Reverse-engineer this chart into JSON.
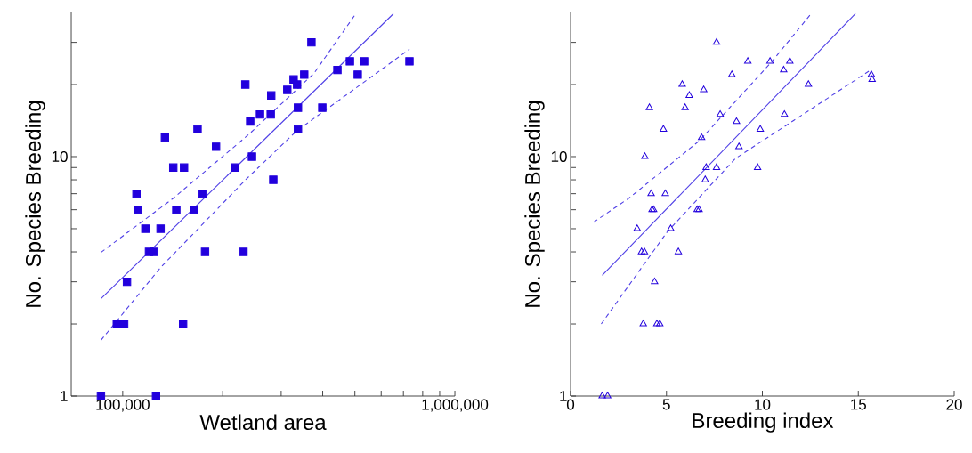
{
  "chart_data": [
    {
      "type": "scatter",
      "xlabel": "Wetland area",
      "ylabel": "No. Species Breeding",
      "log": "xy",
      "xlim": [
        70000,
        1000000
      ],
      "ylim": [
        1,
        40
      ],
      "xticks": [
        {
          "value": 100000,
          "label": "100,000"
        },
        {
          "value": 200000,
          "label": null
        },
        {
          "value": 300000,
          "label": null
        },
        {
          "value": 400000,
          "label": null
        },
        {
          "value": 500000,
          "label": null
        },
        {
          "value": 600000,
          "label": null
        },
        {
          "value": 700000,
          "label": null
        },
        {
          "value": 800000,
          "label": null
        },
        {
          "value": 900000,
          "label": null
        },
        {
          "value": 1000000,
          "label": "1,000,000"
        }
      ],
      "yticks": [
        1,
        {
          "value": 2,
          "label": null
        },
        {
          "value": 3,
          "label": null
        },
        {
          "value": 4,
          "label": null
        },
        {
          "value": 5,
          "label": null
        },
        {
          "value": 6,
          "label": null
        },
        {
          "value": 7,
          "label": null
        },
        {
          "value": 8,
          "label": null
        },
        {
          "value": 9,
          "label": null
        },
        10,
        {
          "value": 20,
          "label": null
        },
        {
          "value": 30,
          "label": null
        }
      ],
      "series": [
        {
          "type": "scatter",
          "marker": "square",
          "color": "#2200dd",
          "x": [
            370000,
            483000,
            533000,
            730000,
            443000,
            510000,
            352000,
            327000,
            335000,
            234000,
            313000,
            280000,
            337000,
            399000,
            259000,
            279000,
            242000,
            337000,
            168000,
            134000,
            191000,
            245000,
            142000,
            153000,
            218000,
            284000,
            110000,
            174000,
            111000,
            145000,
            164000,
            117000,
            130000,
            120000,
            124000,
            177000,
            231000,
            103000,
            96000,
            101000,
            152000,
            86000,
            126000
          ],
          "values": [
            30,
            25,
            25,
            25,
            23,
            22,
            22,
            21,
            20,
            20,
            19,
            18,
            16,
            16,
            15,
            15,
            14,
            13,
            13,
            12,
            11,
            10,
            9,
            9,
            9,
            8,
            7,
            7,
            6,
            6,
            6,
            5,
            5,
            4,
            4,
            4,
            4,
            3,
            2,
            2,
            2,
            1,
            1
          ]
        },
        {
          "type": "line",
          "marker": "none",
          "line_style": "solid",
          "color": "#4f3fe6",
          "x": [
            86000,
            653000
          ],
          "values": [
            2.55,
            39.5
          ]
        },
        {
          "type": "line",
          "marker": "none",
          "line_style": "dashed",
          "color": "#4f3fe6",
          "x": [
            86000,
            142000,
            240000,
            377000,
            503000
          ],
          "values": [
            3.98,
            6.7,
            12.4,
            22.3,
            39.5
          ]
        },
        {
          "type": "line",
          "marker": "none",
          "line_style": "dashed",
          "color": "#4f3fe6",
          "x": [
            86000,
            130000,
            236000,
            334000,
            730000
          ],
          "values": [
            1.71,
            3.44,
            8.08,
            12.8,
            28.1
          ]
        }
      ]
    },
    {
      "type": "scatter",
      "xlabel": "Breeding index",
      "ylabel": "No. Species Breeding",
      "log": "y",
      "xlim": [
        0,
        20
      ],
      "ylim": [
        1,
        40
      ],
      "xticks": [
        0,
        5,
        10,
        15,
        20
      ],
      "yticks": [
        1,
        {
          "value": 2,
          "label": null
        },
        {
          "value": 3,
          "label": null
        },
        {
          "value": 4,
          "label": null
        },
        {
          "value": 5,
          "label": null
        },
        {
          "value": 6,
          "label": null
        },
        {
          "value": 7,
          "label": null
        },
        {
          "value": 8,
          "label": null
        },
        {
          "value": 9,
          "label": null
        },
        10,
        {
          "value": 20,
          "label": null
        },
        {
          "value": 30,
          "label": null
        }
      ],
      "series": [
        {
          "type": "scatter",
          "marker": "triangle",
          "color": "#2200dd",
          "x": [
            7.61,
            9.24,
            10.4,
            11.43,
            11.11,
            15.68,
            15.72,
            8.41,
            5.82,
            12.4,
            6.94,
            6.19,
            4.11,
            5.97,
            7.8,
            11.15,
            8.65,
            4.84,
            9.89,
            6.83,
            8.78,
            3.87,
            7.07,
            7.61,
            9.75,
            7.02,
            4.2,
            4.94,
            4.25,
            4.33,
            6.6,
            6.7,
            3.47,
            5.22,
            3.7,
            3.85,
            5.62,
            4.38,
            3.79,
            4.5,
            4.65,
            1.65,
            1.93
          ],
          "values": [
            30,
            25,
            25,
            25,
            23,
            22,
            21,
            22,
            20,
            20,
            19,
            18,
            16,
            16,
            15,
            15,
            14,
            13,
            13,
            12,
            11,
            10,
            9,
            9,
            9,
            8,
            7,
            7,
            6,
            6,
            6,
            6,
            5,
            5,
            4,
            4,
            4,
            3,
            2,
            2,
            2,
            1,
            1
          ]
        },
        {
          "type": "line",
          "marker": "none",
          "line_style": "solid",
          "color": "#4f3fe6",
          "x": [
            1.65,
            14.85
          ],
          "values": [
            3.19,
            39.5
          ]
        },
        {
          "type": "line",
          "marker": "none",
          "line_style": "dashed",
          "color": "#4f3fe6",
          "x": [
            1.2,
            3.04,
            6.74,
            10.45,
            12.54
          ],
          "values": [
            5.32,
            6.7,
            11.7,
            24.7,
            39.5
          ]
        },
        {
          "type": "line",
          "marker": "none",
          "line_style": "dashed",
          "color": "#4f3fe6",
          "x": [
            1.6,
            5.03,
            8.6,
            11.66,
            15.68
          ],
          "values": [
            2.0,
            4.84,
            9.83,
            14.2,
            23.1
          ]
        }
      ]
    }
  ]
}
